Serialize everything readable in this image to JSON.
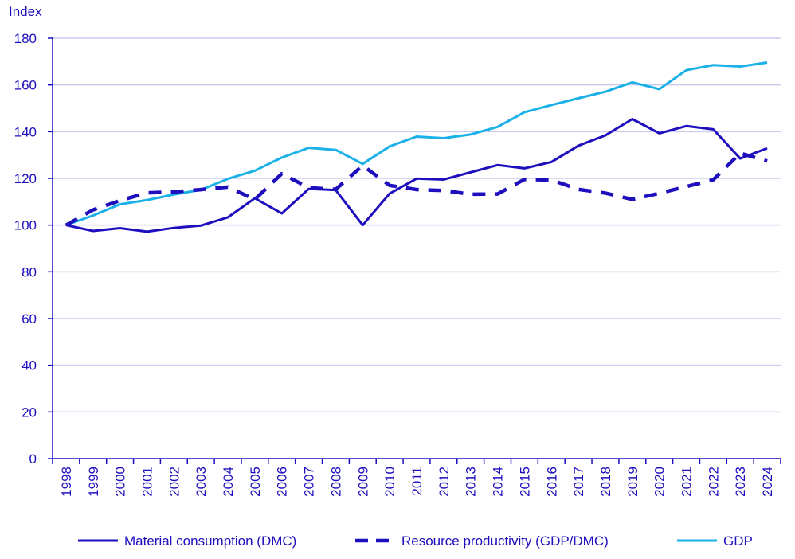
{
  "chart_data": {
    "type": "line",
    "title": "",
    "ylabel": "Index",
    "xlabel": "",
    "ylim": [
      0,
      180
    ],
    "yticks": [
      0,
      20,
      40,
      60,
      80,
      100,
      120,
      140,
      160,
      180
    ],
    "grid": true,
    "legend_position": "bottom",
    "categories": [
      "1998",
      "1999",
      "2000",
      "2001",
      "2002",
      "2003",
      "2004",
      "2005",
      "2006",
      "2007",
      "2008",
      "2009",
      "2010",
      "2011",
      "2012",
      "2013",
      "2014",
      "2015",
      "2016",
      "2017",
      "2018",
      "2019",
      "2020",
      "2021",
      "2022",
      "2023",
      "2024"
    ],
    "series": [
      {
        "name": "Material consumption (DMC)",
        "color": "#1e0fbe",
        "style": "solid",
        "values": [
          100,
          97.5,
          98.7,
          97.2,
          98.8,
          99.8,
          103.3,
          111.5,
          105,
          115.5,
          115,
          100,
          113.5,
          119.9,
          119.5,
          122.6,
          125.7,
          124.3,
          127,
          134,
          138.4,
          145.4,
          139.3,
          142.4,
          141,
          128.5,
          132.9
        ]
      },
      {
        "name": "Resource productivity (GDP/DMC)",
        "color": "#1e0fbe",
        "style": "dashed",
        "values": [
          100,
          106.5,
          110.5,
          113.8,
          114.2,
          115.2,
          116.3,
          111,
          122,
          116,
          115.3,
          125.5,
          117,
          115.2,
          114.8,
          113.2,
          113.3,
          119.6,
          119.3,
          115.3,
          113.7,
          111,
          113.6,
          116.5,
          119.4,
          130.8,
          127.4
        ]
      },
      {
        "name": "GDP",
        "color": "#1ab0e8",
        "style": "solid",
        "values": [
          100,
          104.1,
          108.9,
          110.7,
          113.1,
          115.1,
          119.8,
          123.3,
          128.9,
          133.1,
          132.2,
          126.2,
          133.7,
          137.9,
          137.2,
          138.8,
          142,
          148.3,
          151.4,
          154.3,
          157.1,
          161.1,
          158.2,
          166.3,
          168.5,
          167.9,
          169.6
        ]
      }
    ]
  }
}
